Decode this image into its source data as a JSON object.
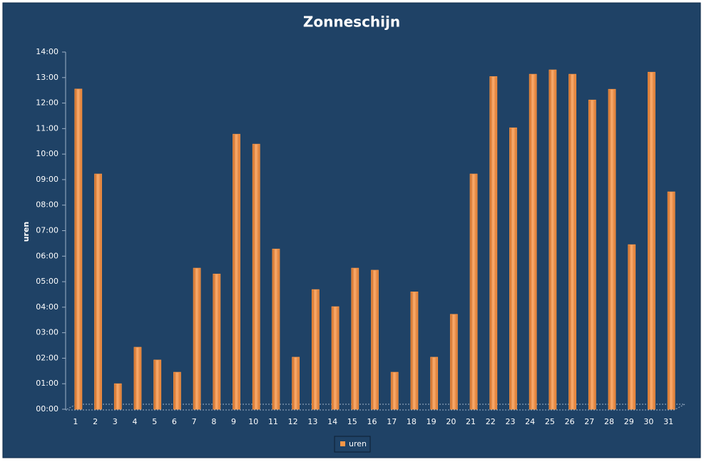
{
  "chart_data": {
    "type": "bar",
    "title": "Zonneschijn",
    "y_label": "uren",
    "categories": [
      "1",
      "2",
      "3",
      "4",
      "5",
      "6",
      "7",
      "8",
      "9",
      "10",
      "11",
      "12",
      "13",
      "14",
      "15",
      "16",
      "17",
      "18",
      "19",
      "20",
      "21",
      "22",
      "23",
      "24",
      "25",
      "26",
      "27",
      "28",
      "29",
      "30",
      "31"
    ],
    "series": [
      {
        "name": "uren",
        "color": "#f79646",
        "values": [
          12.55,
          9.22,
          1.0,
          2.43,
          1.93,
          1.45,
          5.53,
          5.3,
          10.78,
          10.39,
          6.28,
          2.04,
          4.69,
          4.02,
          5.53,
          5.45,
          1.45,
          4.6,
          2.04,
          3.72,
          9.22,
          13.04,
          11.03,
          13.13,
          13.3,
          13.13,
          12.12,
          12.54,
          6.45,
          13.21,
          8.52
        ]
      }
    ],
    "ylim": [
      0,
      14
    ],
    "yticks": [
      {
        "value": 0,
        "label": "00:00"
      },
      {
        "value": 1,
        "label": "01:00"
      },
      {
        "value": 2,
        "label": "02:00"
      },
      {
        "value": 3,
        "label": "03:00"
      },
      {
        "value": 4,
        "label": "04:00"
      },
      {
        "value": 5,
        "label": "05:00"
      },
      {
        "value": 6,
        "label": "06:00"
      },
      {
        "value": 7,
        "label": "07:00"
      },
      {
        "value": 8,
        "label": "08:00"
      },
      {
        "value": 9,
        "label": "09:00"
      },
      {
        "value": 10,
        "label": "10:00"
      },
      {
        "value": 11,
        "label": "11:00"
      },
      {
        "value": 12,
        "label": "12:00"
      },
      {
        "value": 13,
        "label": "13:00"
      },
      {
        "value": 14,
        "label": "14:00"
      }
    ],
    "grid": false,
    "legend": "bottom"
  }
}
